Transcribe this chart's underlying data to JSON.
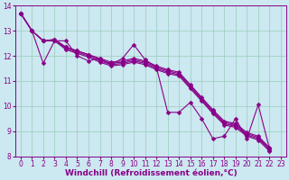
{
  "xlabel": "Windchill (Refroidissement éolien,°C)",
  "xlim": [
    -0.5,
    23.5
  ],
  "ylim": [
    8,
    14
  ],
  "xticks": [
    0,
    1,
    2,
    3,
    4,
    5,
    6,
    7,
    8,
    9,
    10,
    11,
    12,
    13,
    14,
    15,
    16,
    17,
    18,
    19,
    20,
    21,
    22,
    23
  ],
  "yticks": [
    8,
    9,
    10,
    11,
    12,
    13,
    14
  ],
  "bg_color": "#cce8f0",
  "line_color": "#880088",
  "grid_color": "#99ccbb",
  "linewidth": 0.8,
  "markersize": 2.5,
  "tick_fontsize": 5.5,
  "xlabel_fontsize": 6.5,
  "series_main": [
    13.7,
    13.0,
    11.7,
    12.6,
    12.6,
    12.0,
    11.8,
    11.9,
    11.65,
    11.9,
    12.45,
    11.85,
    11.55,
    9.75,
    9.75,
    10.15,
    9.5,
    8.7,
    8.8,
    9.5,
    8.7,
    10.05,
    8.3
  ],
  "series_smooth1": [
    13.7,
    13.0,
    12.6,
    12.65,
    12.35,
    12.2,
    12.05,
    11.85,
    11.7,
    11.75,
    11.85,
    11.75,
    11.55,
    11.4,
    11.3,
    10.8,
    10.3,
    9.8,
    9.35,
    9.25,
    8.9,
    8.75,
    8.3
  ],
  "series_smooth2": [
    13.7,
    13.0,
    12.6,
    12.65,
    12.35,
    12.2,
    12.05,
    11.9,
    11.75,
    11.8,
    11.9,
    11.8,
    11.6,
    11.45,
    11.35,
    10.85,
    10.35,
    9.85,
    9.4,
    9.3,
    8.95,
    8.8,
    8.35
  ],
  "series_smooth3": [
    13.7,
    13.0,
    12.6,
    12.6,
    12.3,
    12.15,
    12.0,
    11.8,
    11.65,
    11.7,
    11.8,
    11.7,
    11.5,
    11.35,
    11.25,
    10.75,
    10.25,
    9.75,
    9.3,
    9.2,
    8.85,
    8.7,
    8.25
  ],
  "series_smooth4": [
    13.7,
    13.0,
    12.6,
    12.6,
    12.25,
    12.1,
    11.95,
    11.75,
    11.6,
    11.65,
    11.75,
    11.65,
    11.45,
    11.3,
    11.2,
    10.7,
    10.2,
    9.7,
    9.25,
    9.15,
    8.8,
    8.65,
    8.2
  ]
}
